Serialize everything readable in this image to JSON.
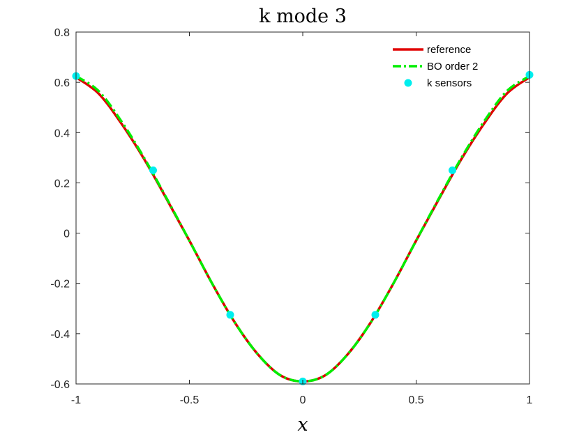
{
  "chart_data": {
    "type": "line",
    "title": "k mode 3",
    "xlabel": "x",
    "ylabel": "",
    "xlim": [
      -1,
      1
    ],
    "ylim": [
      -0.6,
      0.8
    ],
    "xticks": [
      -1,
      -0.5,
      0,
      0.5,
      1
    ],
    "xtick_labels": [
      "-1",
      "-0.5",
      "0",
      "0.5",
      "1"
    ],
    "yticks": [
      -0.6,
      -0.4,
      -0.2,
      0,
      0.2,
      0.4,
      0.6,
      0.8
    ],
    "ytick_labels": [
      "-0.6",
      "-0.4",
      "-0.2",
      "0",
      "0.2",
      "0.4",
      "0.6",
      "0.8"
    ],
    "grid": false,
    "legend_position": "top-right",
    "series": [
      {
        "name": "reference",
        "style": "solid-line",
        "color": "#e00000",
        "x": [
          -1.0,
          -0.9,
          -0.8,
          -0.7,
          -0.6,
          -0.5,
          -0.4,
          -0.3,
          -0.2,
          -0.1,
          0.0,
          0.1,
          0.2,
          0.3,
          0.4,
          0.5,
          0.6,
          0.7,
          0.8,
          0.9,
          1.0
        ],
        "y": [
          0.62,
          0.555,
          0.436,
          0.295,
          0.135,
          -0.03,
          -0.2,
          -0.355,
          -0.48,
          -0.565,
          -0.59,
          -0.565,
          -0.48,
          -0.355,
          -0.2,
          -0.03,
          0.135,
          0.295,
          0.436,
          0.555,
          0.62
        ]
      },
      {
        "name": "BO order 2",
        "style": "dash-dot-line",
        "color": "#00ee00",
        "x": [
          -1.0,
          -0.9,
          -0.8,
          -0.7,
          -0.6,
          -0.5,
          -0.4,
          -0.3,
          -0.2,
          -0.1,
          0.0,
          0.1,
          0.2,
          0.3,
          0.4,
          0.5,
          0.6,
          0.7,
          0.8,
          0.9,
          1.0
        ],
        "y": [
          0.625,
          0.565,
          0.445,
          0.3,
          0.138,
          -0.03,
          -0.2,
          -0.355,
          -0.48,
          -0.565,
          -0.59,
          -0.565,
          -0.48,
          -0.355,
          -0.2,
          -0.03,
          0.138,
          0.3,
          0.445,
          0.565,
          0.625
        ]
      },
      {
        "name": "k sensors",
        "style": "markers",
        "color": "#00eeee",
        "x": [
          -1.0,
          -0.66,
          -0.32,
          0.0,
          0.32,
          0.66,
          1.0
        ],
        "y": [
          0.625,
          0.25,
          -0.325,
          -0.59,
          -0.325,
          0.25,
          0.63
        ]
      }
    ]
  }
}
